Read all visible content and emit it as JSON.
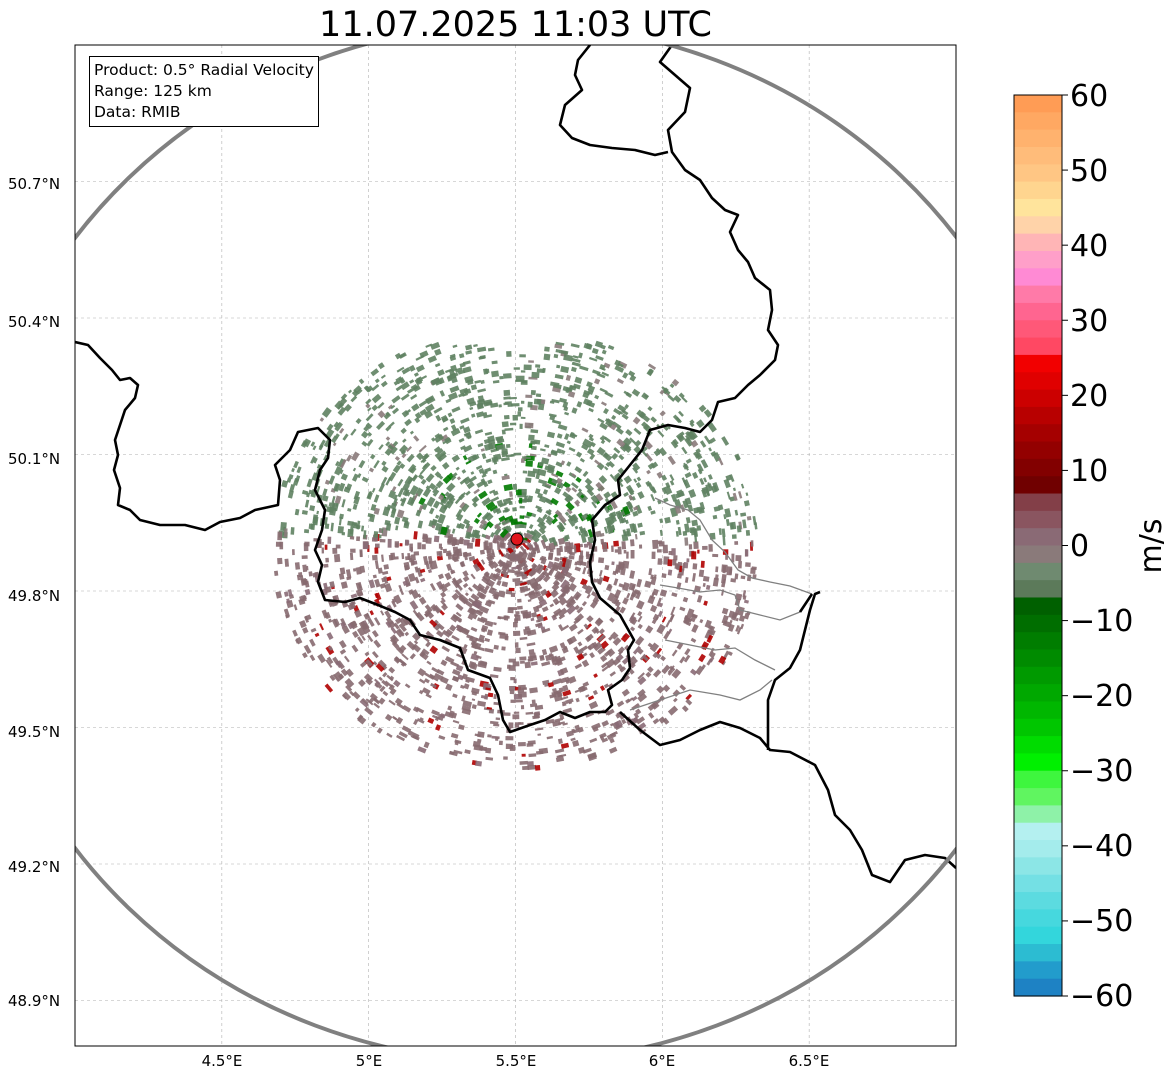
{
  "title": "11.07.2025 11:03 UTC",
  "info_box": {
    "product": "Product: 0.5° Radial Velocity",
    "range": "Range: 125 km",
    "data": "Data: RMIB"
  },
  "axes": {
    "lat_labels": [
      "50.7°N",
      "50.4°N",
      "50.1°N",
      "49.8°N",
      "49.5°N",
      "49.2°N",
      "48.9°N"
    ],
    "lon_labels": [
      "4.5°E",
      "5°E",
      "5.5°E",
      "6°E",
      "6.5°E"
    ]
  },
  "map": {
    "lon_range": [
      4.0,
      7.0
    ],
    "lat_range": [
      48.8,
      51.0
    ],
    "lat_ticks": [
      50.7,
      50.4,
      50.1,
      49.8,
      49.5,
      49.2,
      48.9
    ],
    "lon_ticks": [
      4.5,
      5.0,
      5.5,
      6.0,
      6.5
    ],
    "radar_site": {
      "lon": 5.505,
      "lat": 49.914,
      "marker_color": "#e0161c"
    },
    "range_ring_km": 125,
    "grid": true,
    "colors": {
      "range_ring": "#808080",
      "borders": "#000000",
      "admin_borders": "#808080",
      "echo_inbound": "#5f8262",
      "echo_outbound": "#876a70",
      "echo_green": "#007a00"
    }
  },
  "colorbar": {
    "label": "m/s",
    "ticks": [
      "60",
      "50",
      "40",
      "30",
      "20",
      "10",
      "0",
      "−10",
      "−20",
      "−30",
      "−40",
      "−50",
      "−60"
    ],
    "range": [
      -60,
      60
    ],
    "colors_top_to_bottom": [
      "#ff9c55",
      "#ffa862",
      "#ffb26e",
      "#ffbc7a",
      "#ffc684",
      "#ffd58f",
      "#ffe49c",
      "#ffd3a9",
      "#ffb5b6",
      "#ff9fc9",
      "#ff8ad4",
      "#ff7aa8",
      "#ff6590",
      "#ff5878",
      "#ff4863",
      "#f20000",
      "#e00000",
      "#cc0000",
      "#b80000",
      "#a50000",
      "#930000",
      "#820000",
      "#700000",
      "#833f48",
      "#8a5560",
      "#8a6a75",
      "#8a7a7a",
      "#6f8a70",
      "#5c7a5a",
      "#006000",
      "#006e00",
      "#007d00",
      "#008b00",
      "#009a00",
      "#00a800",
      "#00b700",
      "#00c600",
      "#00dc00",
      "#00f000",
      "#3ef63e",
      "#60f560",
      "#8ef2a8",
      "#b4f0f0",
      "#a4ecec",
      "#8ce6e6",
      "#74e0e4",
      "#5cdbe0",
      "#46d8de",
      "#33d6dc",
      "#2cbcd2",
      "#229ccc",
      "#1e82c4"
    ]
  }
}
